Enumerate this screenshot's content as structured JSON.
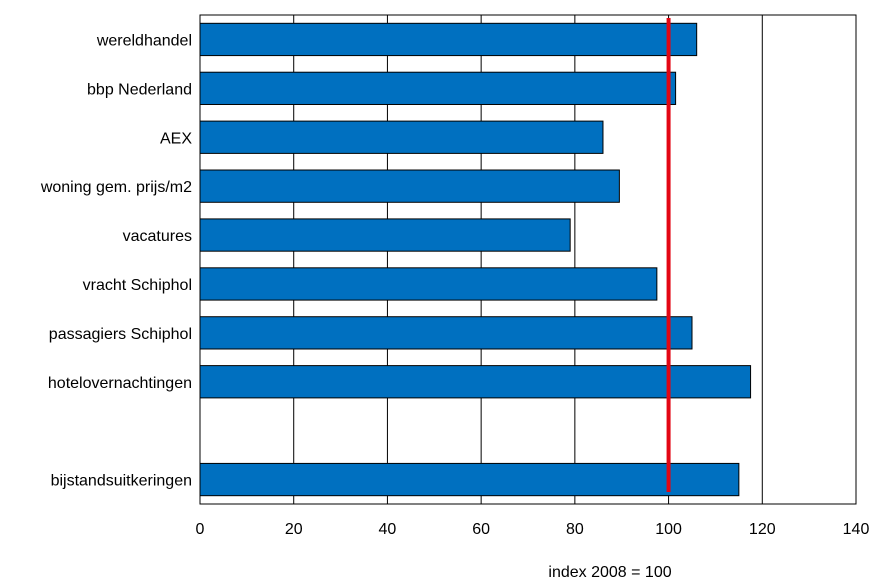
{
  "chart_data": {
    "type": "bar",
    "orientation": "horizontal",
    "title": "",
    "xlabel": "index 2008 = 100",
    "ylabel": "",
    "xlim": [
      0,
      140
    ],
    "x_ticks": [
      0,
      20,
      40,
      60,
      80,
      100,
      120,
      140
    ],
    "x_tick_labels": [
      "0",
      "20",
      "40",
      "60",
      "80",
      "100",
      "120",
      "140"
    ],
    "grid": true,
    "legend": "none",
    "categories": [
      "wereldhandel",
      "bbp Nederland",
      "AEX",
      "woning gem. prijs/m2",
      "vacatures",
      "vracht Schiphol",
      "passagiers Schiphol",
      "hotelovernachtingen",
      "",
      "bijstandsuitkeringen"
    ],
    "values": [
      106,
      101.5,
      86,
      89.5,
      79,
      97.5,
      105,
      117.5,
      null,
      115
    ],
    "reference_line": {
      "value": 100,
      "color": "#e30613"
    },
    "colors": {
      "bar": "#0070c0",
      "bar_edge": "#000000",
      "grid": "#000000"
    }
  }
}
